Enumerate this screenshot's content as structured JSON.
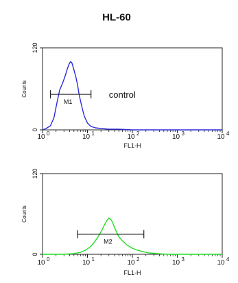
{
  "chart_data": [
    {
      "type": "line",
      "title": "HL-60",
      "xlabel": "FL1-H",
      "ylabel": "Counts",
      "x_scale": "log",
      "xlim": [
        1,
        10000
      ],
      "ylim": [
        0,
        120
      ],
      "x_ticks": [
        {
          "value": 1,
          "label": "10",
          "exp": "0"
        },
        {
          "value": 10,
          "label": "10",
          "exp": "1"
        },
        {
          "value": 100,
          "label": "10",
          "exp": "2"
        },
        {
          "value": 1000,
          "label": "10",
          "exp": "3"
        },
        {
          "value": 10000,
          "label": "10",
          "exp": "4"
        }
      ],
      "y_ticks": [
        {
          "value": 0,
          "label": "0"
        },
        {
          "value": 120,
          "label": "120"
        }
      ],
      "series": [
        {
          "color": "#2b2bd8",
          "x": [
            1.0,
            1.2,
            1.5,
            1.8,
            2.1,
            2.4,
            2.7,
            3.0,
            3.3,
            3.6,
            3.9,
            4.2,
            4.5,
            4.8,
            5.1,
            5.5,
            6.0,
            6.6,
            7.5,
            8.5,
            10,
            12,
            15,
            20,
            30,
            50,
            100,
            300,
            1000,
            10000
          ],
          "y": [
            0,
            2,
            6,
            18,
            40,
            58,
            66,
            74,
            82,
            90,
            96,
            100,
            98,
            92,
            86,
            78,
            66,
            50,
            34,
            20,
            10,
            5,
            3,
            2,
            1,
            1,
            0,
            0,
            0,
            0
          ]
        }
      ],
      "marker": {
        "label": "M1",
        "x_start": 1.5,
        "x_end": 12,
        "y": 52
      },
      "annotation": {
        "text": "control",
        "x": 30,
        "y": 52
      }
    },
    {
      "type": "line",
      "xlabel": "FL1-H",
      "ylabel": "Counts",
      "x_scale": "log",
      "xlim": [
        1,
        10000
      ],
      "ylim": [
        0,
        120
      ],
      "x_ticks": [
        {
          "value": 1,
          "label": "10",
          "exp": "0"
        },
        {
          "value": 10,
          "label": "10",
          "exp": "1"
        },
        {
          "value": 100,
          "label": "10",
          "exp": "2"
        },
        {
          "value": 1000,
          "label": "10",
          "exp": "3"
        },
        {
          "value": 10000,
          "label": "10",
          "exp": "4"
        }
      ],
      "y_ticks": [
        {
          "value": 0,
          "label": "0"
        },
        {
          "value": 120,
          "label": "120"
        }
      ],
      "series": [
        {
          "color": "#22dd22",
          "x": [
            1,
            3,
            5,
            7,
            9,
            12,
            15,
            18,
            21,
            24,
            27,
            30,
            33,
            36,
            40,
            45,
            50,
            60,
            75,
            100,
            130,
            170,
            230,
            350,
            600,
            1000,
            10000
          ],
          "y": [
            0,
            0,
            1,
            3,
            6,
            12,
            20,
            28,
            36,
            44,
            50,
            54,
            52,
            48,
            40,
            32,
            26,
            20,
            14,
            9,
            6,
            4,
            2,
            1,
            0,
            0,
            0
          ]
        }
      ],
      "marker": {
        "label": "M2",
        "x_start": 6,
        "x_end": 180,
        "y": 30
      }
    }
  ]
}
